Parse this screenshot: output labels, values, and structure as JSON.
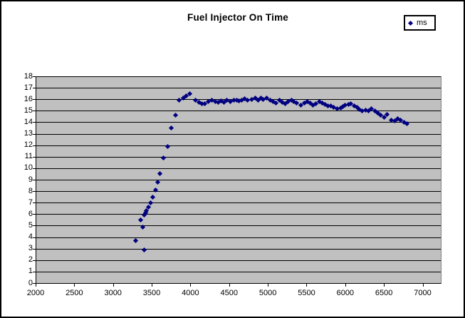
{
  "title": "Fuel Injector On Time",
  "legend": {
    "label": "ms",
    "marker_icon": "diamond-icon",
    "marker_color": "#000080"
  },
  "colors": {
    "plot_background": "#C0C0C0",
    "marker": "#000080",
    "gridline": "#000000",
    "text": "#000000",
    "chart_background": "#FFFFFF",
    "border": "#000000"
  },
  "chart_data": {
    "type": "scatter",
    "title": "Fuel Injector On Time",
    "xlabel": "",
    "ylabel": "",
    "xlim": [
      2000,
      7225
    ],
    "ylim": [
      0,
      18
    ],
    "x_ticks": [
      2000,
      2500,
      3000,
      3500,
      4000,
      4500,
      5000,
      5500,
      6000,
      6500,
      7000
    ],
    "y_ticks": [
      0,
      1,
      2,
      3,
      4,
      5,
      6,
      7,
      8,
      9,
      10,
      11,
      12,
      13,
      14,
      15,
      16,
      17,
      18
    ],
    "grid": "horizontal",
    "legend_position": "top-right",
    "series": [
      {
        "name": "ms",
        "marker": "diamond",
        "color": "#000080",
        "points": [
          [
            3285,
            3.7
          ],
          [
            3350,
            5.5
          ],
          [
            3375,
            4.9
          ],
          [
            3390,
            2.9
          ],
          [
            3395,
            5.9
          ],
          [
            3410,
            6.1
          ],
          [
            3425,
            6.3
          ],
          [
            3450,
            6.6
          ],
          [
            3480,
            7.0
          ],
          [
            3505,
            7.5
          ],
          [
            3540,
            8.1
          ],
          [
            3570,
            8.8
          ],
          [
            3600,
            9.5
          ],
          [
            3640,
            10.9
          ],
          [
            3695,
            11.9
          ],
          [
            3740,
            13.5
          ],
          [
            3795,
            14.6
          ],
          [
            3840,
            15.9
          ],
          [
            3900,
            16.1
          ],
          [
            3935,
            16.3
          ],
          [
            3985,
            16.5
          ],
          [
            4055,
            15.9
          ],
          [
            4105,
            15.75
          ],
          [
            4135,
            15.6
          ],
          [
            4180,
            15.6
          ],
          [
            4225,
            15.8
          ],
          [
            4270,
            15.9
          ],
          [
            4310,
            15.8
          ],
          [
            4350,
            15.75
          ],
          [
            4390,
            15.85
          ],
          [
            4425,
            15.75
          ],
          [
            4465,
            15.9
          ],
          [
            4510,
            15.8
          ],
          [
            4550,
            15.95
          ],
          [
            4585,
            15.9
          ],
          [
            4620,
            15.85
          ],
          [
            4655,
            15.95
          ],
          [
            4695,
            16.05
          ],
          [
            4730,
            15.9
          ],
          [
            4780,
            16.0
          ],
          [
            4825,
            16.1
          ],
          [
            4870,
            15.95
          ],
          [
            4900,
            16.1
          ],
          [
            4930,
            16.0
          ],
          [
            4975,
            16.1
          ],
          [
            5025,
            15.95
          ],
          [
            5060,
            15.8
          ],
          [
            5100,
            15.7
          ],
          [
            5140,
            15.9
          ],
          [
            5175,
            15.75
          ],
          [
            5215,
            15.6
          ],
          [
            5255,
            15.8
          ],
          [
            5295,
            15.9
          ],
          [
            5330,
            15.8
          ],
          [
            5360,
            15.7
          ],
          [
            5415,
            15.5
          ],
          [
            5460,
            15.65
          ],
          [
            5500,
            15.8
          ],
          [
            5540,
            15.65
          ],
          [
            5575,
            15.5
          ],
          [
            5615,
            15.6
          ],
          [
            5655,
            15.8
          ],
          [
            5695,
            15.7
          ],
          [
            5730,
            15.55
          ],
          [
            5770,
            15.45
          ],
          [
            5805,
            15.4
          ],
          [
            5845,
            15.3
          ],
          [
            5885,
            15.2
          ],
          [
            5930,
            15.25
          ],
          [
            5960,
            15.35
          ],
          [
            5990,
            15.5
          ],
          [
            6030,
            15.55
          ],
          [
            6065,
            15.6
          ],
          [
            6105,
            15.45
          ],
          [
            6140,
            15.3
          ],
          [
            6175,
            15.1
          ],
          [
            6210,
            15.0
          ],
          [
            6250,
            15.05
          ],
          [
            6290,
            15.0
          ],
          [
            6330,
            15.15
          ],
          [
            6375,
            15.0
          ],
          [
            6415,
            14.8
          ],
          [
            6450,
            14.6
          ],
          [
            6490,
            14.45
          ],
          [
            6530,
            14.7
          ],
          [
            6590,
            14.2
          ],
          [
            6630,
            14.1
          ],
          [
            6665,
            14.3
          ],
          [
            6705,
            14.2
          ],
          [
            6750,
            14.0
          ],
          [
            6790,
            13.9
          ]
        ]
      }
    ]
  }
}
